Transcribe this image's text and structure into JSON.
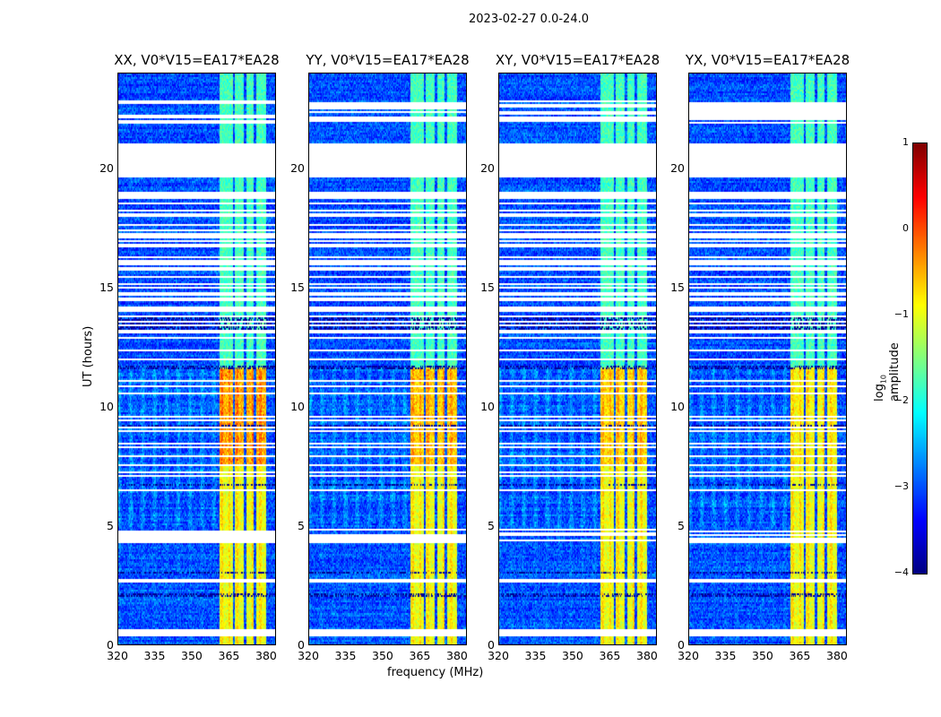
{
  "chart_data": {
    "type": "heatmap",
    "title": "2023-02-27 0.0-24.0",
    "xlabel": "frequency (MHz)",
    "ylabel": "UT (hours)",
    "xlim": [
      320,
      384
    ],
    "ylim": [
      0,
      24
    ],
    "xticks": [
      "320",
      "335",
      "350",
      "365",
      "380"
    ],
    "xtick_values": [
      320,
      335,
      350,
      365,
      380
    ],
    "yticks": [
      "0",
      "5",
      "10",
      "15",
      "20"
    ],
    "ytick_values": [
      0,
      5,
      10,
      15,
      20
    ],
    "panels": [
      {
        "title": "XX, V0*V15=EA17*EA28",
        "strong_boost": 0.6
      },
      {
        "title": "YY, V0*V15=EA17*EA28",
        "strong_boost": 0.4
      },
      {
        "title": "XY, V0*V15=EA17*EA28",
        "strong_boost": 0.3
      },
      {
        "title": "YX, V0*V15=EA17*EA28",
        "strong_boost": 0.1
      }
    ],
    "rfi_band_mhz": [
      361,
      380
    ],
    "rfi_gaps_mhz": [
      367,
      371.5,
      375.5
    ],
    "band_level_log10": {
      "0-11.7h": -1.0,
      "11.7-24h": -1.8
    },
    "background_log10": -3.0,
    "flagged_hours": [
      [
        0.4,
        0.7
      ],
      [
        2.6,
        2.8
      ],
      [
        4.3,
        4.9
      ],
      [
        19.65,
        21.1
      ],
      [
        21.95,
        22.9
      ]
    ],
    "colorbar": {
      "label": "log10 amplitude",
      "label_main": "log",
      "label_sub": "10",
      "label_rest": " amplitude",
      "colormap": "jet",
      "range": [
        -4,
        1
      ],
      "ticks": [
        "1",
        "0",
        "−1",
        "−2",
        "−3",
        "−4"
      ],
      "tick_values": [
        1,
        0,
        -1,
        -2,
        -3,
        -4
      ]
    }
  }
}
